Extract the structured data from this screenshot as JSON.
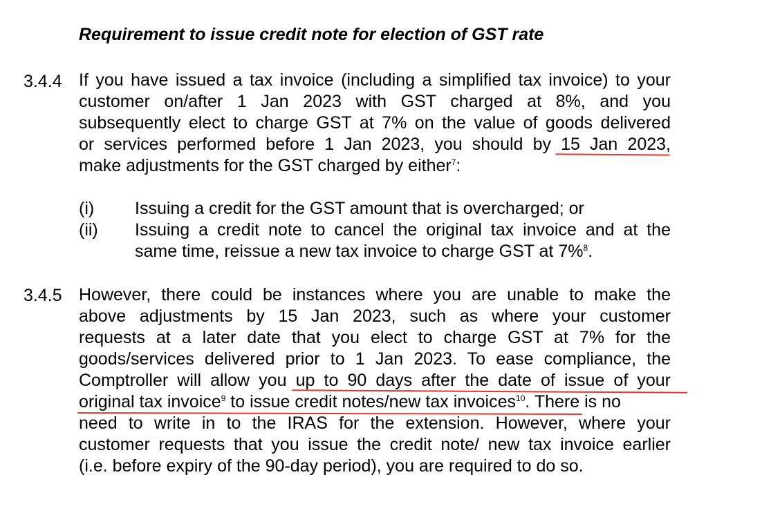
{
  "document": {
    "heading": "Requirement to issue credit note for election of GST rate",
    "section_344": {
      "number": "3.4.4",
      "lines": [
        "If you have issued a tax invoice (including a simplified tax invoice) to your",
        "customer on/after 1 Jan 2023 with GST charged at 8%, and you",
        "subsequently elect to charge GST at 7% on the value of goods delivered",
        "or services performed before 1 Jan 2023, you should by 15 Jan 2023,",
        "make adjustments for the GST charged by either"
      ],
      "footnote_ref": "7",
      "trailing_colon": ":",
      "list": [
        {
          "marker": "(i)",
          "lines": [
            "Issuing a credit for the GST amount that is overcharged; or"
          ]
        },
        {
          "marker": "(ii)",
          "lines": [
            "Issuing a credit note to cancel the original tax invoice and at the",
            "same time, reissue a new tax invoice to charge GST at 7%"
          ],
          "footnote_ref": "8",
          "trailing": "."
        }
      ]
    },
    "section_345": {
      "number": "3.4.5",
      "lines": [
        "However, there could be instances where you are unable to make the",
        "above adjustments by 15 Jan 2023, such as where your customer",
        "requests at a later date that you elect to charge GST at 7% for the",
        "goods/services delivered prior to 1 Jan 2023. To ease compliance, the",
        "Comptroller will allow you up to 90 days after the date of issue of your"
      ],
      "line6_part1": "original tax invoice",
      "line6_fn1": "9",
      "line6_part2": " to issue credit notes/new tax invoices",
      "line6_fn2": "10",
      "line6_part3": ". There is no",
      "lines_after": [
        "need to write in to the IRAS for the extension. However, where your",
        "customer requests that you issue the credit note/ new tax invoice earlier",
        "(i.e. before expiry of the 90-day period), you are required to do so."
      ]
    }
  },
  "annotations": {
    "underline_color": "#e0372a"
  }
}
